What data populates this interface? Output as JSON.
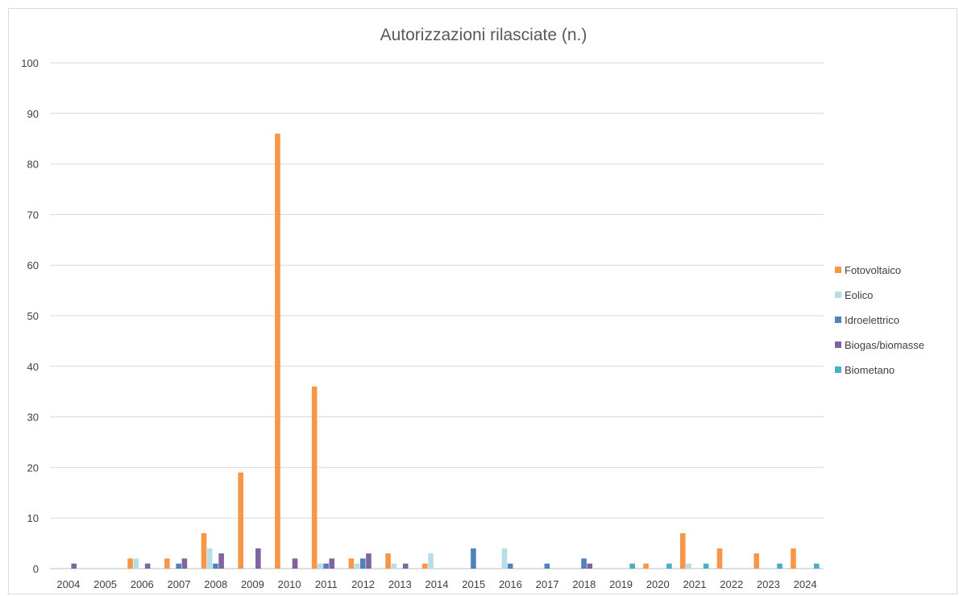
{
  "chart_data": {
    "type": "bar",
    "title": "Autorizzazioni rilasciate (n.)",
    "xlabel": "",
    "ylabel": "",
    "ylim": [
      0,
      100
    ],
    "yticks": [
      0,
      10,
      20,
      30,
      40,
      50,
      60,
      70,
      80,
      90,
      100
    ],
    "grid": true,
    "legend_position": "right",
    "categories": [
      "2004",
      "2005",
      "2006",
      "2007",
      "2008",
      "2009",
      "2010",
      "2011",
      "2012",
      "2013",
      "2014",
      "2015",
      "2016",
      "2017",
      "2018",
      "2019",
      "2020",
      "2021",
      "2022",
      "2023",
      "2024"
    ],
    "series": [
      {
        "name": "Fotovoltaico",
        "color": "#f79646",
        "values": [
          0,
          0,
          2,
          2,
          7,
          19,
          86,
          36,
          2,
          3,
          1,
          0,
          0,
          0,
          0,
          0,
          1,
          7,
          4,
          3,
          4
        ]
      },
      {
        "name": "Eolico",
        "color": "#b7dde8",
        "values": [
          0,
          0,
          2,
          0,
          4,
          0,
          0,
          1,
          1,
          1,
          3,
          0,
          4,
          0,
          0,
          0,
          0,
          1,
          0,
          0,
          0
        ]
      },
      {
        "name": "Idroelettrico",
        "color": "#4f81bd",
        "values": [
          0,
          0,
          0,
          1,
          1,
          0,
          0,
          1,
          2,
          0,
          0,
          4,
          1,
          1,
          2,
          0,
          0,
          0,
          0,
          0,
          0
        ]
      },
      {
        "name": "Biogas/biomasse",
        "color": "#8064a2",
        "values": [
          1,
          0,
          1,
          2,
          3,
          4,
          2,
          2,
          3,
          1,
          0,
          0,
          0,
          0,
          1,
          0,
          0,
          0,
          0,
          0,
          0
        ]
      },
      {
        "name": "Biometano",
        "color": "#4bacc6",
        "values": [
          0,
          0,
          0,
          0,
          0,
          0,
          0,
          0,
          0,
          0,
          0,
          0,
          0,
          0,
          0,
          1,
          1,
          1,
          0,
          1,
          1
        ]
      }
    ]
  }
}
